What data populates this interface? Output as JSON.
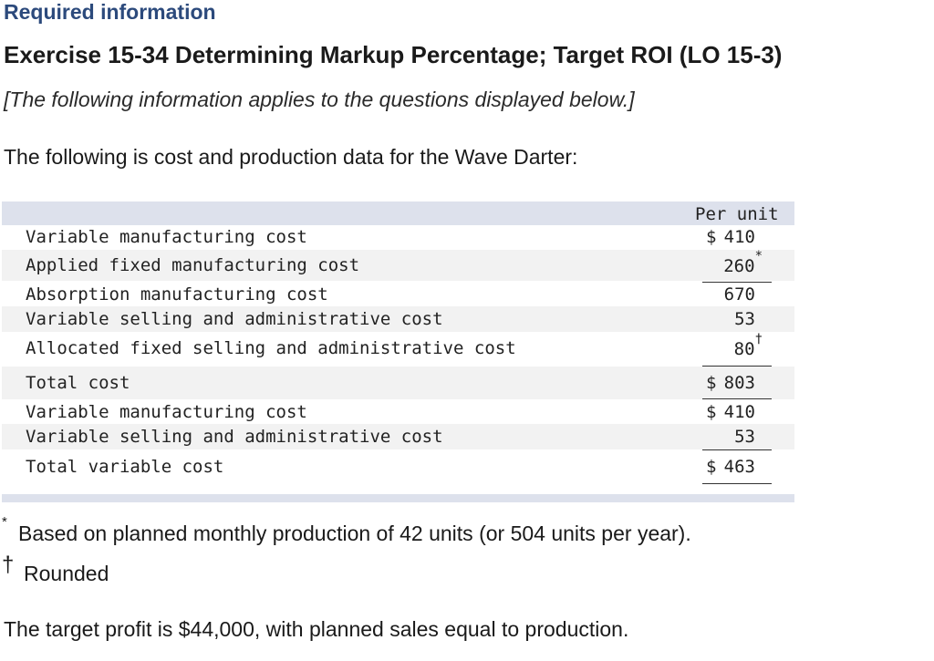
{
  "header": {
    "required": "Required information",
    "title": "Exercise 15-34 Determining Markup Percentage; Target ROI (LO 15-3)",
    "note": "[The following information applies to the questions displayed below.]",
    "intro": "The following is cost and production data for the Wave Darter:"
  },
  "table": {
    "column_header": "Per unit",
    "rows": [
      {
        "label": "Variable manufacturing cost",
        "dollar": "$",
        "value": "410",
        "mark": ""
      },
      {
        "label": "Applied fixed manufacturing cost",
        "dollar": "",
        "value": "260",
        "mark": "*"
      },
      {
        "label": "Absorption manufacturing cost",
        "dollar": "",
        "value": "670",
        "mark": ""
      },
      {
        "label": "Variable selling and administrative cost",
        "dollar": "",
        "value": "53",
        "mark": ""
      },
      {
        "label": "Allocated fixed selling and administrative cost",
        "dollar": "",
        "value": "80",
        "mark": "†"
      },
      {
        "label": "Total cost",
        "dollar": "$",
        "value": "803",
        "mark": ""
      },
      {
        "label": "Variable manufacturing cost",
        "dollar": "$",
        "value": "410",
        "mark": ""
      },
      {
        "label": "Variable selling and administrative cost",
        "dollar": "",
        "value": "53",
        "mark": ""
      },
      {
        "label": "Total variable cost",
        "dollar": "$",
        "value": "463",
        "mark": ""
      }
    ]
  },
  "footnotes": {
    "star_symbol": "*",
    "star_text": "Based on planned monthly production of 42 units (or 504 units per year).",
    "dagger_symbol": "†",
    "dagger_text": "Rounded"
  },
  "target_text": "The target profit is $44,000, with planned sales equal to production."
}
